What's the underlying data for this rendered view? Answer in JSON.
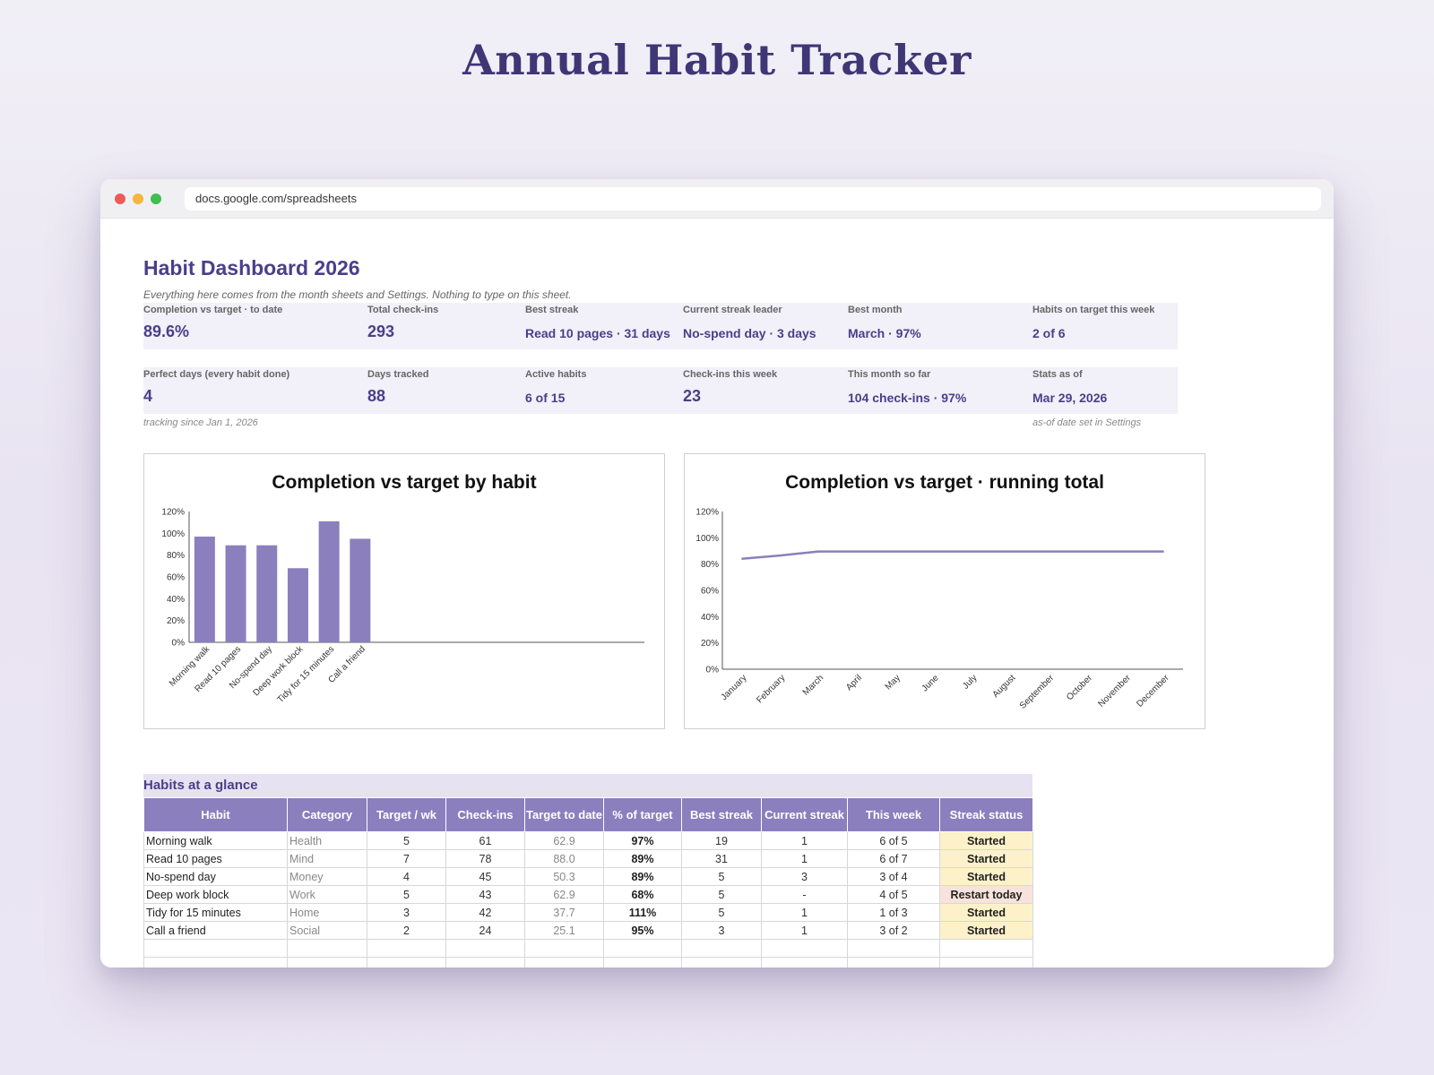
{
  "page_title": "Annual Habit Tracker",
  "browser": {
    "url": "docs.google.com/spreadsheets"
  },
  "dashboard": {
    "title": "Habit Dashboard 2026",
    "subtitle": "Everything here comes from the month sheets and Settings. Nothing to type on this sheet.",
    "stats_row1": [
      {
        "label": "Completion vs target · to date",
        "value": "89.6%"
      },
      {
        "label": "Total check-ins",
        "value": "293"
      },
      {
        "label": "Best streak",
        "value": "Read 10 pages · 31 days"
      },
      {
        "label": "Current streak leader",
        "value": "No-spend day · 3 days"
      },
      {
        "label": "Best month",
        "value": "March · 97%"
      },
      {
        "label": "Habits on target this week",
        "value": "2 of 6"
      }
    ],
    "stats_row2": [
      {
        "label": "Perfect days (every habit done)",
        "value": "4"
      },
      {
        "label": "Days tracked",
        "value": "88"
      },
      {
        "label": "Active habits",
        "value": "6 of 15"
      },
      {
        "label": "Check-ins this week",
        "value": "23"
      },
      {
        "label": "This month so far",
        "value": "104 check-ins · 97%"
      },
      {
        "label": "Stats as of",
        "value": "Mar 29, 2026"
      }
    ],
    "note_left": "tracking since Jan 1, 2026",
    "note_right": "as-of date set in Settings"
  },
  "chart_data": [
    {
      "type": "bar",
      "title": "Completion vs target by habit",
      "categories": [
        "Morning walk",
        "Read 10 pages",
        "No-spend day",
        "Deep work block",
        "Tidy for 15 minutes",
        "Call a friend"
      ],
      "values": [
        97,
        89,
        89,
        68,
        111,
        95
      ],
      "yticks": [
        "0%",
        "20%",
        "40%",
        "60%",
        "80%",
        "100%",
        "120%"
      ],
      "ylim": [
        0,
        120
      ],
      "color": "#8b7fbd"
    },
    {
      "type": "line",
      "title": "Completion vs target · running total",
      "categories": [
        "January",
        "February",
        "March",
        "April",
        "May",
        "June",
        "July",
        "August",
        "September",
        "October",
        "November",
        "December"
      ],
      "values": [
        84,
        86.5,
        89.6,
        89.6,
        89.6,
        89.6,
        89.6,
        89.6,
        89.6,
        89.6,
        89.6,
        89.6
      ],
      "yticks": [
        "0%",
        "20%",
        "40%",
        "60%",
        "80%",
        "100%",
        "120%"
      ],
      "ylim": [
        0,
        120
      ],
      "color": "#8b7fbd"
    }
  ],
  "table": {
    "title": "Habits at a glance",
    "headers": [
      "Habit",
      "Category",
      "Target / wk",
      "Check-ins",
      "Target to date",
      "% of target",
      "Best streak",
      "Current streak",
      "This week",
      "Streak status"
    ],
    "rows": [
      [
        "Morning walk",
        "Health",
        "5",
        "61",
        "62.9",
        "97%",
        "19",
        "1",
        "6 of 5",
        "Started"
      ],
      [
        "Read 10 pages",
        "Mind",
        "7",
        "78",
        "88.0",
        "89%",
        "31",
        "1",
        "6 of 7",
        "Started"
      ],
      [
        "No-spend day",
        "Money",
        "4",
        "45",
        "50.3",
        "89%",
        "5",
        "3",
        "3 of 4",
        "Started"
      ],
      [
        "Deep work block",
        "Work",
        "5",
        "43",
        "62.9",
        "68%",
        "5",
        "-",
        "4 of 5",
        "Restart today"
      ],
      [
        "Tidy for 15 minutes",
        "Home",
        "3",
        "42",
        "37.7",
        "111%",
        "5",
        "1",
        "1 of 3",
        "Started"
      ],
      [
        "Call a friend",
        "Social",
        "2",
        "24",
        "25.1",
        "95%",
        "3",
        "1",
        "3 of 2",
        "Started"
      ]
    ]
  }
}
